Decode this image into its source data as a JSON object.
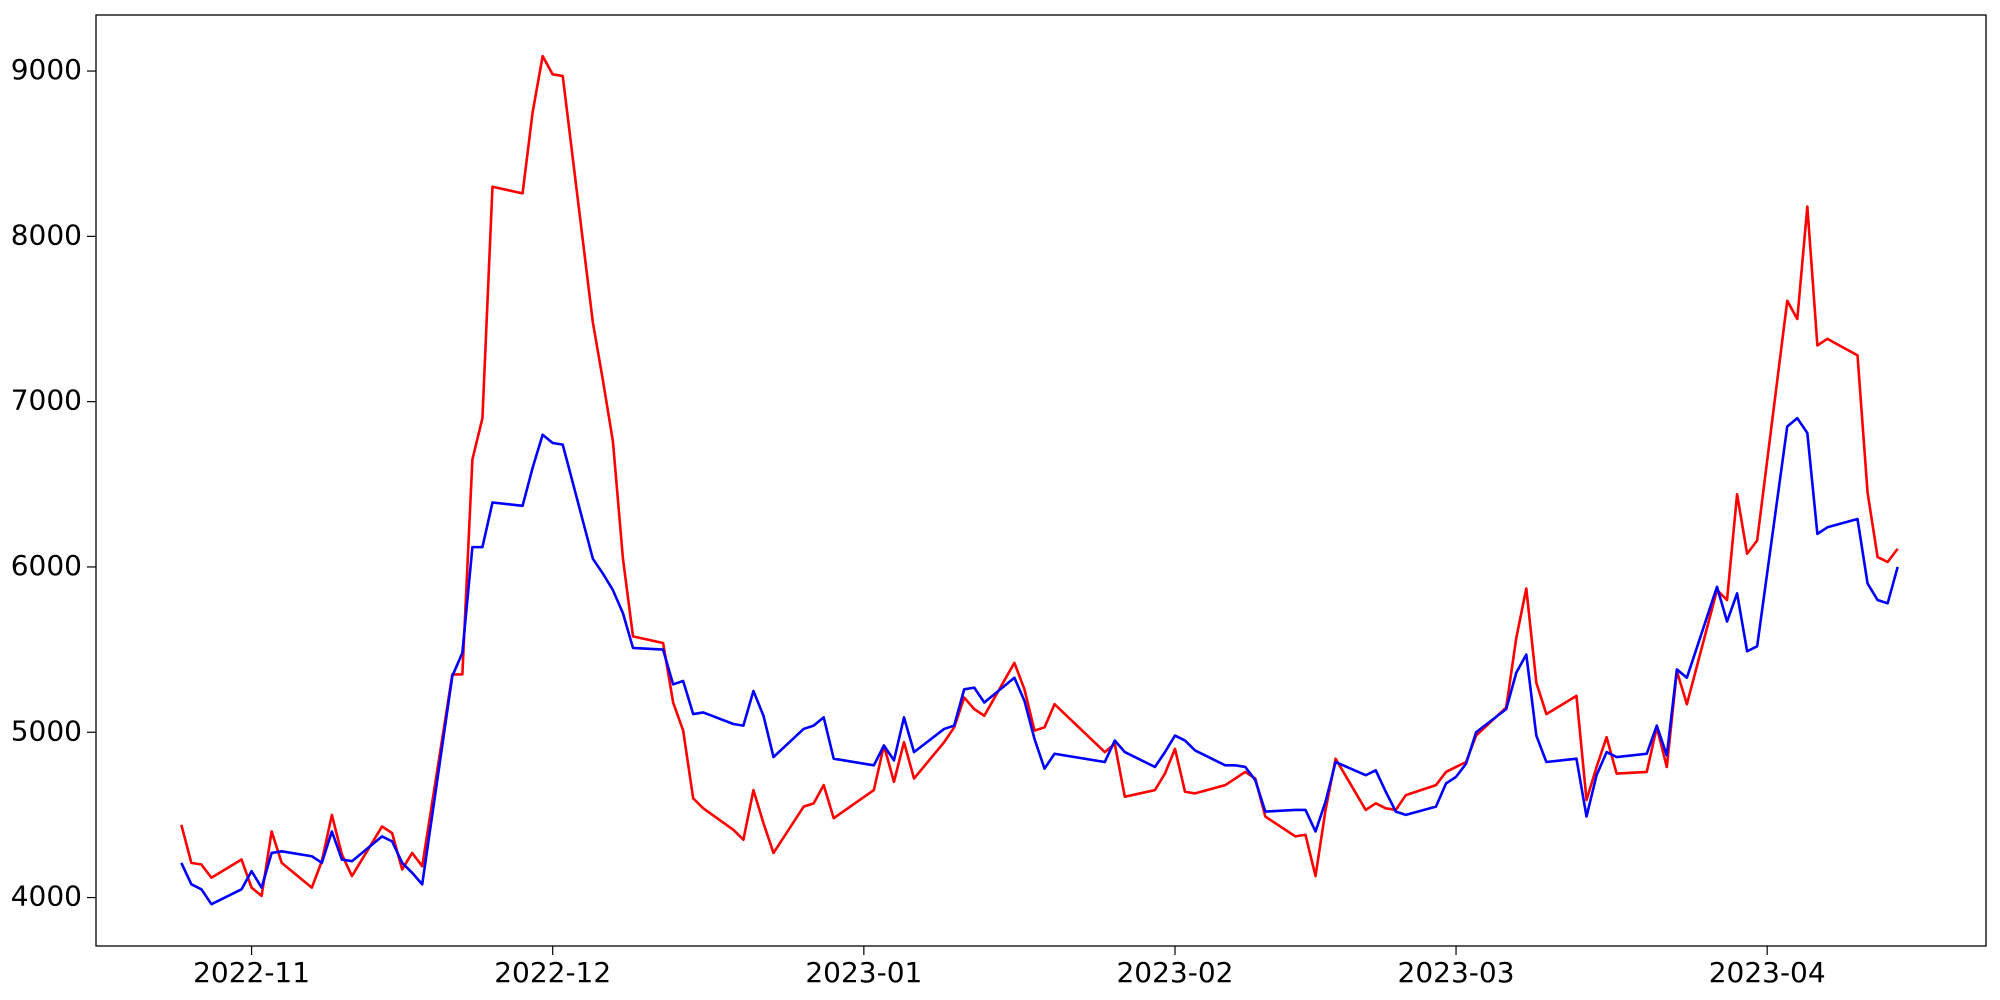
{
  "chart_data": {
    "type": "line",
    "x": [
      19290,
      19291,
      19292,
      19293,
      19296,
      19297,
      19298,
      19299,
      19300,
      19303,
      19304,
      19305,
      19306,
      19307,
      19310,
      19311,
      19312,
      19313,
      19314,
      19317,
      19318,
      19319,
      19320,
      19321,
      19324,
      19325,
      19326,
      19327,
      19328,
      19331,
      19332,
      19333,
      19334,
      19335,
      19338,
      19339,
      19340,
      19341,
      19342,
      19345,
      19346,
      19347,
      19348,
      19349,
      19352,
      19353,
      19354,
      19355,
      19359,
      19360,
      19361,
      19362,
      19363,
      19366,
      19367,
      19368,
      19369,
      19370,
      19373,
      19374,
      19375,
      19376,
      19377,
      19382,
      19383,
      19384,
      19387,
      19388,
      19389,
      19390,
      19391,
      19394,
      19395,
      19396,
      19397,
      19398,
      19401,
      19402,
      19403,
      19404,
      19405,
      19408,
      19409,
      19410,
      19411,
      19412,
      19415,
      19416,
      19417,
      19418,
      19419,
      19422,
      19423,
      19424,
      19425,
      19426,
      19429,
      19430,
      19431,
      19432,
      19433,
      19436,
      19437,
      19438,
      19439,
      19440,
      19443,
      19444,
      19445,
      19446,
      19447,
      19450,
      19451,
      19452,
      19453,
      19454,
      19457,
      19458,
      19459,
      19460,
      19461
    ],
    "series": [
      {
        "color": "#ff0000",
        "values": [
          4440,
          4210,
          4200,
          4120,
          4230,
          4060,
          4010,
          4400,
          4210,
          4060,
          4220,
          4500,
          4260,
          4130,
          4430,
          4390,
          4170,
          4270,
          4190,
          5350,
          5350,
          6650,
          6900,
          8300,
          8260,
          8750,
          9090,
          8980,
          8970,
          7480,
          7130,
          6760,
          6050,
          5580,
          5540,
          5180,
          5010,
          4600,
          4540,
          4410,
          4350,
          4650,
          4450,
          4270,
          4550,
          4570,
          4680,
          4480,
          4650,
          4920,
          4700,
          4940,
          4720,
          4940,
          5030,
          5210,
          5140,
          5100,
          5420,
          5260,
          5010,
          5030,
          5170,
          4880,
          4930,
          4610,
          4650,
          4750,
          4900,
          4640,
          4630,
          4680,
          4720,
          4760,
          4720,
          4490,
          4370,
          4380,
          4130,
          4530,
          4840,
          4530,
          4570,
          4540,
          4530,
          4620,
          4680,
          4760,
          4790,
          4820,
          4980,
          5150,
          5570,
          5870,
          5300,
          5110,
          5220,
          4590,
          4790,
          4970,
          4750,
          4760,
          5030,
          4790,
          5370,
          5170,
          5860,
          5800,
          6440,
          6080,
          6160,
          7610,
          7500,
          8180,
          7340,
          7380,
          7280,
          6450,
          6060,
          6030,
          6110
        ]
      },
      {
        "color": "#0000ff",
        "values": [
          4210,
          4080,
          4050,
          3960,
          4050,
          4160,
          4060,
          4270,
          4280,
          4250,
          4210,
          4400,
          4230,
          4220,
          4370,
          4340,
          4210,
          4150,
          4080,
          5340,
          5480,
          6120,
          6120,
          6390,
          6370,
          6600,
          6800,
          6750,
          6740,
          6050,
          5960,
          5860,
          5720,
          5510,
          5500,
          5290,
          5310,
          5110,
          5120,
          5050,
          5040,
          5250,
          5100,
          4850,
          5020,
          5040,
          5090,
          4840,
          4800,
          4920,
          4830,
          5090,
          4880,
          5020,
          5040,
          5260,
          5270,
          5180,
          5330,
          5190,
          4960,
          4780,
          4870,
          4820,
          4950,
          4880,
          4790,
          4880,
          4980,
          4950,
          4890,
          4800,
          4800,
          4790,
          4710,
          4520,
          4530,
          4530,
          4400,
          4580,
          4820,
          4740,
          4770,
          4640,
          4520,
          4500,
          4550,
          4690,
          4730,
          4810,
          5000,
          5140,
          5360,
          5470,
          4980,
          4820,
          4840,
          4490,
          4740,
          4880,
          4850,
          4870,
          5040,
          4860,
          5380,
          5330,
          5880,
          5670,
          5840,
          5490,
          5520,
          6850,
          6900,
          6810,
          6200,
          6240,
          6290,
          5900,
          5800,
          5780,
          6000
        ]
      }
    ],
    "xlim": [
      19281.5,
      19469.8
    ],
    "xticks": [
      {
        "value": 19297,
        "label": "2022-11"
      },
      {
        "value": 19327,
        "label": "2022-12"
      },
      {
        "value": 19358,
        "label": "2023-01"
      },
      {
        "value": 19389,
        "label": "2023-02"
      },
      {
        "value": 19417,
        "label": "2023-03"
      },
      {
        "value": 19448,
        "label": "2023-04"
      }
    ],
    "ylim": [
      3707,
      9339
    ],
    "yticks": [
      4000,
      5000,
      6000,
      7000,
      8000,
      9000
    ],
    "grid": false
  }
}
